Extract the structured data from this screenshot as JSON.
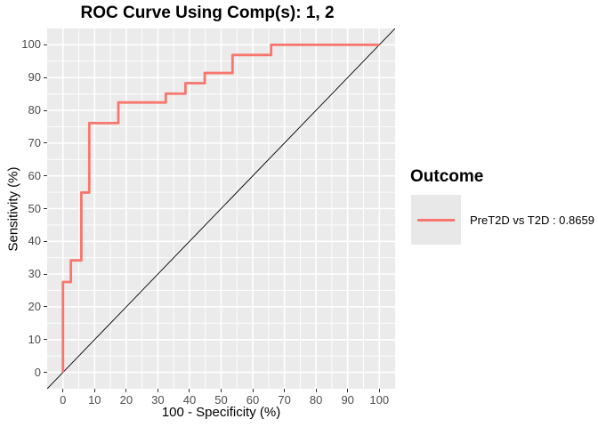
{
  "title": "ROC Curve Using Comp(s): 1, 2",
  "axes": {
    "x": {
      "title": "100 - Specificity (%)"
    },
    "y": {
      "title": "Sensitivity (%)"
    }
  },
  "legend": {
    "title": "Outcome",
    "entries": [
      {
        "label": "PreT2D vs T2D : 0.8659",
        "color": "#F8766D",
        "auc": "0.8659"
      }
    ]
  },
  "colors": {
    "panel_background": "#EBEBEB",
    "grid_major": "#FFFFFF",
    "grid_minor": "#FFFFFF",
    "roc_line": "#F8766D",
    "diagonal_line": "#000000",
    "tick_label": "#4D4D4D",
    "legend_key_background": "#E8E8E8"
  },
  "chart_data": {
    "type": "line",
    "subtype": "roc-step-curve",
    "title": "ROC Curve Using Comp(s): 1, 2",
    "xlabel": "100 - Specificity (%)",
    "ylabel": "Sensitivity (%)",
    "xlim": [
      -5,
      105
    ],
    "ylim": [
      -5,
      105
    ],
    "x_ticks": [
      0,
      10,
      20,
      30,
      40,
      50,
      60,
      70,
      80,
      90,
      100
    ],
    "y_ticks": [
      0,
      10,
      20,
      30,
      40,
      50,
      60,
      70,
      80,
      90,
      100
    ],
    "x_minor_ticks": [
      5,
      15,
      25,
      35,
      45,
      55,
      65,
      75,
      85,
      95
    ],
    "y_minor_ticks": [
      5,
      15,
      25,
      35,
      45,
      55,
      65,
      75,
      85,
      95
    ],
    "grid": "major+minor",
    "legend_position": "right",
    "series": [
      {
        "name": "PreT2D vs T2D : 0.8659",
        "auc": 0.8659,
        "color": "#F8766D",
        "role": "roc-curve",
        "points": [
          [
            0,
            0
          ],
          [
            0,
            27.6
          ],
          [
            2.5,
            27.6
          ],
          [
            2.5,
            34.2
          ],
          [
            5.8,
            34.2
          ],
          [
            5.8,
            54.9
          ],
          [
            8.3,
            54.9
          ],
          [
            8.3,
            76.1
          ],
          [
            17.5,
            76.1
          ],
          [
            17.5,
            82.4
          ],
          [
            32.5,
            82.4
          ],
          [
            32.5,
            85.1
          ],
          [
            38.7,
            85.1
          ],
          [
            38.7,
            88.3
          ],
          [
            44.8,
            88.3
          ],
          [
            44.8,
            91.4
          ],
          [
            53.6,
            91.4
          ],
          [
            53.6,
            96.9
          ],
          [
            65.8,
            96.9
          ],
          [
            65.8,
            100
          ],
          [
            100,
            100
          ]
        ]
      },
      {
        "name": "chance-diagonal",
        "color": "#000000",
        "role": "reference-line",
        "points": [
          [
            -5,
            -5
          ],
          [
            105,
            105
          ]
        ]
      }
    ]
  }
}
